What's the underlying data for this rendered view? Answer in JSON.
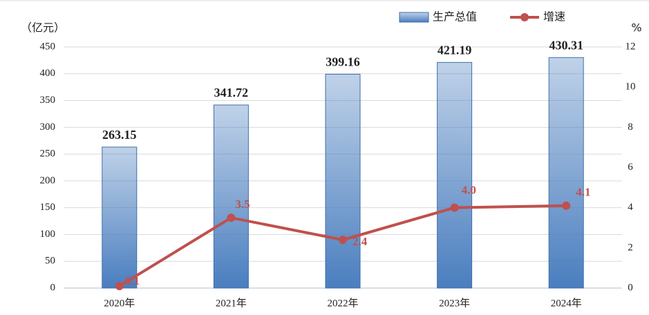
{
  "chart_data": {
    "type": "combo",
    "y_label": "（亿元）",
    "y2_label": "%",
    "categories": [
      "2020年",
      "2021年",
      "2022年",
      "2023年",
      "2024年"
    ],
    "series": [
      {
        "name": "生产总值",
        "type": "bar",
        "color": "#4a7ebf",
        "values": [
          263.15,
          341.72,
          399.16,
          421.19,
          430.31
        ]
      },
      {
        "name": "增速",
        "type": "line",
        "axis": "y2",
        "color": "#c0504d",
        "values": [
          0.1,
          3.5,
          2.4,
          4,
          4.1
        ],
        "value_labels": [
          "0.1",
          "3.5",
          "2.4",
          "4.0",
          "4.1"
        ]
      }
    ],
    "ylim": [
      0,
      450
    ],
    "yticks": [
      0,
      50,
      100,
      150,
      200,
      250,
      300,
      350,
      400,
      450
    ],
    "y2lim": [
      0,
      12
    ],
    "y2ticks": [
      0,
      2,
      4,
      6,
      8,
      10,
      12
    ],
    "grid": true,
    "legend": "top"
  }
}
